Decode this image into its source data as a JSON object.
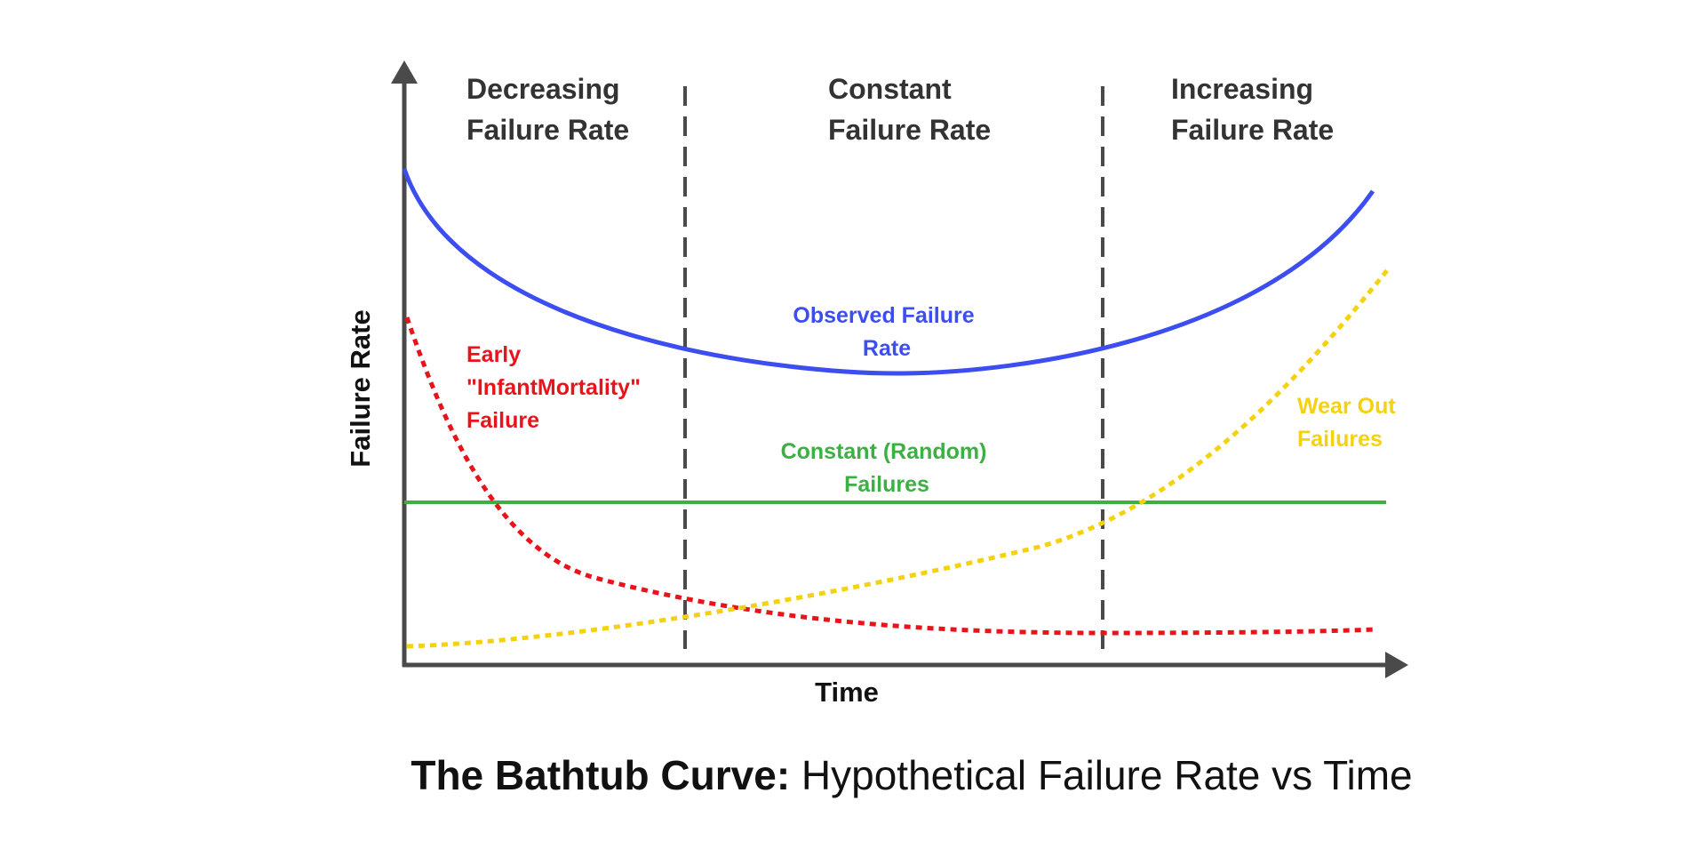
{
  "regions": [
    {
      "line1": "Decreasing",
      "line2": "Failure Rate"
    },
    {
      "line1": "Constant",
      "line2": "Failure Rate"
    },
    {
      "line1": "Increasing",
      "line2": "Failure Rate"
    }
  ],
  "axes": {
    "y_label": "Failure Rate",
    "x_label": "Time"
  },
  "curves": {
    "observed": {
      "line1": "Observed Failure",
      "line2": "Rate",
      "color": "#3d4ef0"
    },
    "infant": {
      "line1": "Early",
      "line2": "\"InfantMortality\"",
      "line3": "Failure",
      "color": "#e8141c"
    },
    "constant": {
      "line1": "Constant (Random)",
      "line2": "Failures",
      "color": "#3cb043"
    },
    "wearout": {
      "line1": "Wear Out",
      "line2": "Failures",
      "color": "#f5d20f"
    }
  },
  "caption": {
    "bold": "The Bathtub Curve:",
    "normal": " Hypothetical Failure Rate vs Time"
  }
}
